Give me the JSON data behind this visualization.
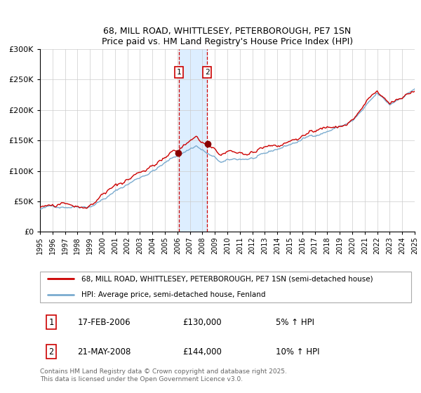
{
  "title_line1": "68, MILL ROAD, WHITTLESEY, PETERBOROUGH, PE7 1SN",
  "title_line2": "Price paid vs. HM Land Registry's House Price Index (HPI)",
  "legend_line1": "68, MILL ROAD, WHITTLESEY, PETERBOROUGH, PE7 1SN (semi-detached house)",
  "legend_line2": "HPI: Average price, semi-detached house, Fenland",
  "annotation1_date": "17-FEB-2006",
  "annotation1_price": "£130,000",
  "annotation1_hpi": "5% ↑ HPI",
  "annotation2_date": "21-MAY-2008",
  "annotation2_price": "£144,000",
  "annotation2_hpi": "10% ↑ HPI",
  "footer": "Contains HM Land Registry data © Crown copyright and database right 2025.\nThis data is licensed under the Open Government Licence v3.0.",
  "sale1_year": 2006.12,
  "sale2_year": 2008.38,
  "sale1_price": 130000,
  "sale2_price": 144000,
  "red_color": "#cc0000",
  "blue_color": "#7aabcf",
  "shade_color": "#ddeeff",
  "vline_color": "#cc0000",
  "ylim_max": 300000,
  "xmin": 1995,
  "xmax": 2025
}
